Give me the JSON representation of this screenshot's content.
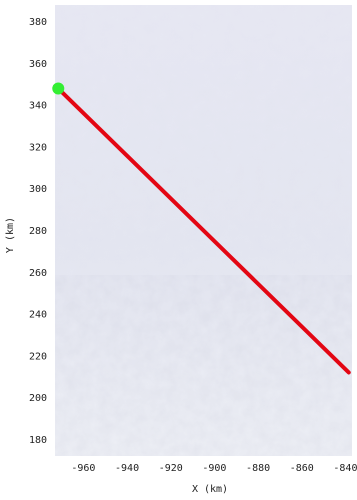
{
  "chart_data": {
    "type": "line",
    "title": "",
    "xlabel": "X (km)",
    "ylabel": "Y (km)",
    "xlim": [
      -973,
      -837
    ],
    "ylim": [
      172,
      388
    ],
    "xticks": [
      -960,
      -940,
      -920,
      -900,
      -880,
      -860,
      -840
    ],
    "yticks": [
      180,
      200,
      220,
      240,
      260,
      280,
      300,
      320,
      340,
      360,
      380
    ],
    "grid": false,
    "background": "satellite ice imagery",
    "series": [
      {
        "x": [
          -971.5,
          -838.5
        ],
        "y": [
          348,
          212
        ],
        "color": "#e30613"
      }
    ],
    "markers": [
      {
        "x": -971.5,
        "y": 348,
        "color": "#33ee33"
      }
    ]
  }
}
